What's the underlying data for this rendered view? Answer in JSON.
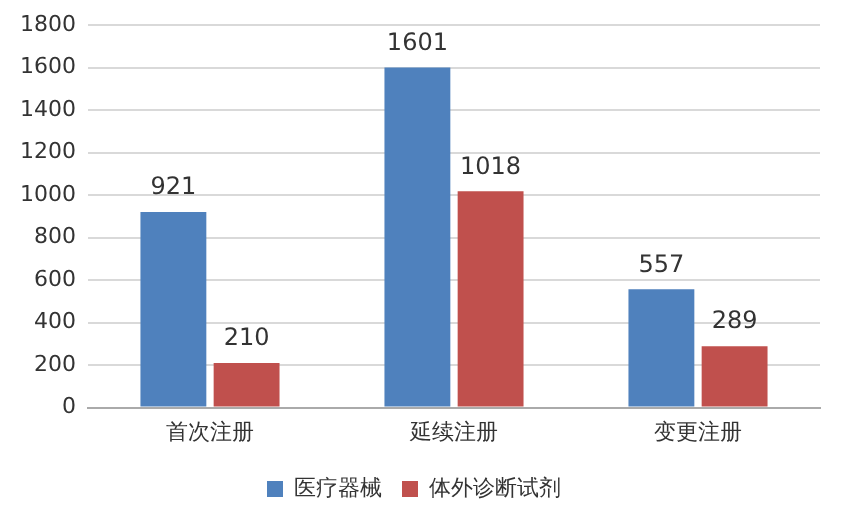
{
  "chart_data": {
    "type": "bar",
    "categories": [
      "首次注册",
      "延续注册",
      "变更注册"
    ],
    "series": [
      {
        "name": "医疗器械",
        "color": "#4f81bd",
        "values": [
          921,
          1601,
          557
        ]
      },
      {
        "name": "体外诊断试剂",
        "color": "#c0504d",
        "values": [
          210,
          1018,
          289
        ]
      }
    ],
    "ylim": [
      0,
      1800
    ],
    "yticks": [
      0,
      200,
      400,
      600,
      800,
      1000,
      1200,
      1400,
      1600,
      1800
    ],
    "grid": "y",
    "legend": "bottom",
    "data_labels": true
  }
}
